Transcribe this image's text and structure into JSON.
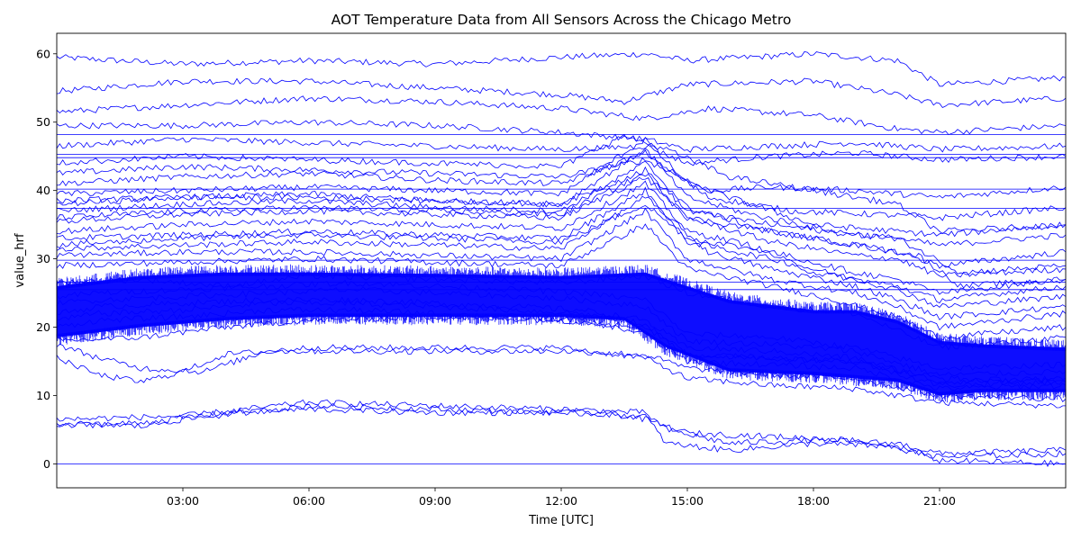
{
  "chart_data": {
    "type": "line",
    "title": "AOT Temperature Data from All Sensors Across the Chicago Metro",
    "xlabel": "Time [UTC]",
    "ylabel": "value_hrf",
    "x_unit": "hours since 00:00 UTC",
    "xlim": [
      0,
      24
    ],
    "ylim": [
      -3.5,
      63
    ],
    "x_ticks": [
      {
        "value": 3,
        "label": "03:00"
      },
      {
        "value": 6,
        "label": "06:00"
      },
      {
        "value": 9,
        "label": "09:00"
      },
      {
        "value": 12,
        "label": "12:00"
      },
      {
        "value": 15,
        "label": "15:00"
      },
      {
        "value": 18,
        "label": "18:00"
      },
      {
        "value": 21,
        "label": "21:00"
      }
    ],
    "y_ticks": [
      {
        "value": 0,
        "label": "0"
      },
      {
        "value": 10,
        "label": "10"
      },
      {
        "value": 20,
        "label": "20"
      },
      {
        "value": 30,
        "label": "30"
      },
      {
        "value": 40,
        "label": "40"
      },
      {
        "value": 50,
        "label": "50"
      },
      {
        "value": 60,
        "label": "60"
      }
    ],
    "series_color": "#0000ff",
    "grid": false,
    "legend": "none",
    "series": [
      {
        "x": [
          0,
          4,
          8,
          12,
          14,
          16,
          18,
          20,
          22,
          24
        ],
        "values": [
          0,
          0,
          0,
          0,
          0,
          0,
          0,
          0,
          0,
          0
        ]
      },
      {
        "x": [
          0,
          12,
          24
        ],
        "values": [
          48.2,
          48.2,
          48.2
        ]
      },
      {
        "x": [
          0,
          12,
          24
        ],
        "values": [
          45.3,
          45.3,
          45.3
        ]
      },
      {
        "x": [
          0,
          12,
          24
        ],
        "values": [
          44.8,
          44.8,
          44.8
        ]
      },
      {
        "x": [
          0,
          12,
          24
        ],
        "values": [
          40.2,
          40.2,
          40.2
        ]
      },
      {
        "x": [
          0,
          12,
          24
        ],
        "values": [
          37.4,
          37.4,
          37.4
        ]
      },
      {
        "x": [
          0,
          12,
          24
        ],
        "values": [
          26.6,
          26.6,
          26.6
        ]
      },
      {
        "x": [
          0,
          12,
          24
        ],
        "values": [
          25.5,
          25.5,
          25.5
        ]
      },
      {
        "x": [
          0,
          12,
          24
        ],
        "values": [
          29.8,
          29.8,
          29.8
        ]
      },
      {
        "x": [
          0,
          3,
          6,
          9,
          12,
          14,
          15,
          18,
          20,
          21,
          24
        ],
        "values": [
          59.5,
          58.5,
          59,
          58.5,
          59.5,
          60,
          59,
          60,
          59,
          55.5,
          56.5
        ]
      },
      {
        "x": [
          0,
          3,
          6,
          9,
          12,
          13.5,
          15,
          18,
          20,
          21,
          24
        ],
        "values": [
          54.5,
          56,
          56,
          55,
          54,
          53,
          55.5,
          56,
          54,
          52.5,
          53.5
        ]
      },
      {
        "x": [
          0,
          3,
          6,
          9,
          12,
          14,
          15.5,
          18,
          20,
          21,
          24
        ],
        "values": [
          51.5,
          52.5,
          53.5,
          53,
          52,
          50.5,
          52,
          51,
          49,
          48.5,
          49.5
        ]
      },
      {
        "x": [
          0,
          3,
          6,
          9,
          12,
          14,
          15,
          17,
          19,
          21,
          24
        ],
        "values": [
          49.5,
          49.5,
          50,
          49.5,
          48.5,
          47.5,
          46,
          46.5,
          47,
          46,
          46.5
        ]
      },
      {
        "x": [
          0,
          3,
          6,
          9,
          12,
          14,
          15,
          17,
          19,
          21,
          24
        ],
        "values": [
          46.5,
          47.5,
          47,
          46.5,
          46,
          46.5,
          44,
          45,
          45.5,
          44.5,
          45
        ]
      },
      {
        "x": [
          0,
          3,
          6,
          9,
          12,
          14,
          15.5,
          17,
          19,
          21,
          24
        ],
        "values": [
          42.5,
          43.5,
          43,
          42.5,
          42,
          44.5,
          40,
          40.5,
          40,
          39,
          40.5
        ]
      },
      {
        "x": [
          0,
          3,
          6,
          9,
          12,
          14,
          15.5,
          17.5,
          19.5,
          21,
          24
        ],
        "values": [
          41,
          42,
          42.5,
          41.5,
          41,
          45.5,
          39,
          37,
          36.5,
          36,
          37.5
        ]
      },
      {
        "x": [
          0,
          3,
          6,
          9,
          12,
          14,
          15,
          16.5,
          18,
          20,
          21,
          24
        ],
        "values": [
          39.5,
          40,
          40.5,
          40,
          39.5,
          47.5,
          41,
          38,
          35,
          34,
          33.5,
          35
        ]
      },
      {
        "x": [
          0,
          3,
          6,
          9,
          12,
          14,
          15,
          16.5,
          18.5,
          20,
          21,
          24
        ],
        "values": [
          38.5,
          39,
          39.5,
          38.5,
          38,
          46,
          39,
          36.5,
          34,
          33,
          32,
          33.5
        ]
      },
      {
        "x": [
          0,
          3,
          6,
          9,
          12,
          14,
          15,
          17,
          19,
          20,
          21,
          24
        ],
        "values": [
          37,
          38,
          38.5,
          37.5,
          37,
          44,
          37.5,
          34,
          32,
          31,
          29,
          31
        ]
      },
      {
        "x": [
          0,
          3,
          6,
          9,
          12,
          14,
          15,
          17,
          19,
          20,
          21,
          24
        ],
        "values": [
          35.5,
          36.5,
          37,
          36.5,
          36,
          42,
          36,
          32.5,
          30.5,
          30,
          27.5,
          28.5
        ]
      },
      {
        "x": [
          0,
          3,
          6,
          9,
          12,
          14,
          15,
          16.5,
          18,
          20,
          21,
          24
        ],
        "values": [
          34,
          35,
          35.5,
          35,
          34.5,
          41,
          34,
          32,
          28,
          26,
          24,
          26
        ]
      },
      {
        "x": [
          0,
          3,
          6,
          9,
          12,
          14,
          15,
          17,
          19,
          20,
          21,
          24
        ],
        "values": [
          33,
          33.5,
          34,
          33.5,
          33,
          40,
          32.5,
          30,
          27,
          25.5,
          23,
          24.5
        ]
      },
      {
        "x": [
          0,
          3,
          6,
          9,
          12,
          14,
          15.5,
          17,
          19,
          20,
          21,
          24
        ],
        "values": [
          31.5,
          32,
          32.5,
          32,
          31.5,
          39,
          31,
          28.5,
          26,
          24,
          21.5,
          23
        ]
      },
      {
        "x": [
          0,
          3,
          6,
          9,
          12,
          14,
          15,
          17,
          19,
          20,
          21,
          24
        ],
        "values": [
          30.5,
          31,
          31,
          30.5,
          30,
          37,
          30,
          27,
          25,
          23,
          20,
          22
        ]
      },
      {
        "x": [
          0,
          3,
          6,
          9,
          12,
          14,
          15,
          17,
          18.5,
          20,
          21,
          24
        ],
        "values": [
          29,
          29.5,
          30,
          29.5,
          29,
          35,
          28.5,
          26,
          24,
          21.5,
          18.5,
          20
        ]
      },
      {
        "x": [
          0,
          3,
          6,
          9,
          12,
          14,
          15,
          17,
          19,
          20,
          21.5,
          24
        ],
        "values": [
          38,
          39,
          39,
          38.5,
          38,
          43,
          37,
          35,
          33.5,
          33,
          28,
          29
        ]
      },
      {
        "x": [
          0,
          3,
          6,
          9,
          12,
          14,
          15,
          17,
          19,
          20.5,
          21.5,
          24
        ],
        "values": [
          36,
          37,
          37.5,
          37,
          36.5,
          42.5,
          36,
          34,
          32,
          30.5,
          26,
          27
        ]
      },
      {
        "x": [
          0,
          2,
          4,
          6,
          9,
          12,
          14,
          15,
          17,
          19,
          21,
          24
        ],
        "values": [
          26.5,
          27,
          26,
          27.5,
          27,
          26.5,
          27.5,
          25,
          23,
          22,
          17,
          18.5
        ]
      },
      {
        "x": [
          0,
          2,
          4,
          6,
          9,
          12,
          14,
          15,
          17,
          19,
          21,
          24
        ],
        "values": [
          18,
          18.5,
          20,
          21,
          21.5,
          21,
          20,
          16,
          15.5,
          15,
          12.5,
          12
        ]
      },
      {
        "x": [
          0,
          1,
          2,
          3.5,
          5,
          7,
          10,
          12,
          14,
          15,
          17,
          19,
          21,
          24
        ],
        "values": [
          17.5,
          15.5,
          14,
          13.5,
          16.5,
          16.5,
          16.5,
          16.5,
          16,
          14,
          13,
          12.5,
          10,
          9.5
        ]
      },
      {
        "x": [
          0,
          1,
          2,
          3,
          4,
          6,
          9,
          12,
          14,
          15,
          17,
          19,
          21,
          24
        ],
        "values": [
          15.5,
          13,
          12,
          13.5,
          16,
          17,
          17,
          17,
          15.5,
          12.5,
          11.5,
          11,
          9,
          8.5
        ]
      },
      {
        "x": [
          0,
          3,
          6,
          9,
          12,
          14,
          14.5,
          16,
          18,
          20,
          21,
          24
        ],
        "values": [
          6.5,
          7,
          9,
          8.5,
          8,
          7.5,
          5,
          3,
          3.5,
          3,
          1.5,
          2
        ]
      },
      {
        "x": [
          0,
          2,
          3,
          6,
          9,
          12,
          14,
          14.5,
          16,
          18,
          20,
          21,
          24
        ],
        "values": [
          6,
          5.5,
          6.5,
          8.5,
          8,
          7.5,
          7,
          3,
          2,
          3,
          2.5,
          0.5,
          0
        ]
      },
      {
        "x": [
          0,
          2,
          4,
          6,
          9,
          12,
          13,
          14,
          15,
          17,
          19,
          21,
          24
        ],
        "values": [
          5.5,
          6,
          7.5,
          8,
          7.5,
          7.5,
          7.5,
          6.5,
          4.5,
          4,
          3.5,
          1,
          1.5
        ]
      },
      {
        "x": [
          0,
          1,
          3,
          5,
          7,
          9,
          11,
          12.5,
          14,
          15,
          17,
          19,
          21,
          24
        ],
        "values": [
          22,
          23,
          23.5,
          24,
          24,
          23.5,
          23,
          22.5,
          21,
          17,
          16.5,
          15.5,
          12,
          12.5
        ]
      },
      {
        "x": [
          0,
          1,
          3,
          5,
          7,
          9,
          11,
          12.5,
          14,
          15,
          17,
          19,
          21,
          24
        ],
        "values": [
          20,
          21,
          21.5,
          22.5,
          22.5,
          22,
          21.5,
          21,
          19,
          15,
          14.5,
          14,
          11,
          11.5
        ]
      },
      {
        "x": [
          0,
          1,
          3,
          5,
          7,
          9,
          11,
          12.5,
          14,
          15,
          17,
          19,
          21,
          24
        ],
        "values": [
          24.5,
          25,
          25.5,
          26,
          26.5,
          26,
          25.5,
          25,
          24,
          19,
          18.5,
          17,
          14,
          14.5
        ]
      },
      {
        "x": [
          0,
          1,
          3,
          5,
          7,
          9,
          11,
          12.5,
          14,
          15,
          17,
          19,
          21,
          24
        ],
        "values": [
          23.5,
          24,
          24.5,
          25,
          25.5,
          25,
          24.5,
          24,
          23,
          18,
          17.5,
          16.5,
          13,
          13.5
        ]
      },
      {
        "x": [
          0,
          1,
          3,
          5,
          7,
          9,
          11,
          12.5,
          14,
          15,
          17,
          19,
          21,
          24
        ],
        "values": [
          21,
          22,
          22.5,
          23.5,
          23.5,
          23,
          22.5,
          22,
          20.5,
          16,
          15.5,
          15,
          11.5,
          12
        ]
      },
      {
        "x": [
          0,
          3,
          6,
          9,
          12,
          13.5,
          14.5,
          16,
          18,
          20,
          21,
          24
        ],
        "values": [
          44,
          45,
          44.5,
          44,
          43.5,
          48,
          46,
          42,
          40,
          38,
          34,
          35
        ]
      },
      {
        "x": [
          0,
          3,
          6,
          9,
          12,
          14,
          15,
          17,
          19,
          20,
          21,
          24
        ],
        "values": [
          32,
          33,
          33.5,
          33,
          32.5,
          38,
          33,
          31,
          28,
          27,
          25,
          27
        ]
      }
    ]
  }
}
